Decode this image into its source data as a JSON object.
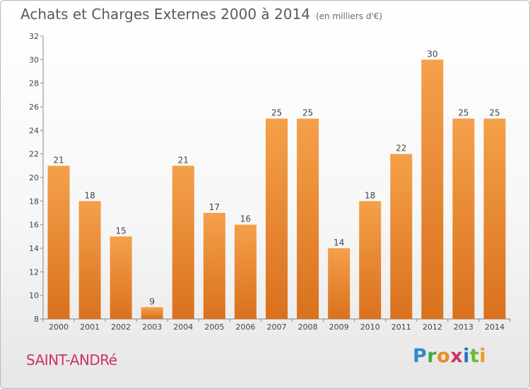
{
  "title": "Achats et Charges Externes 2000 à 2014",
  "subtitle": "(en milliers d'€)",
  "commune": "SAINT-ANDRé",
  "logo": {
    "letters": [
      "P",
      "r",
      "o",
      "x",
      "i",
      "t",
      "i"
    ]
  },
  "colors": {
    "bar_light": "#f5a04a",
    "bar_dark": "#d9711d",
    "title": "#5a5a5a",
    "commune": "#cc3366"
  },
  "chart_data": {
    "type": "bar",
    "title": "Achats et Charges Externes 2000 à 2014",
    "subtitle": "(en milliers d'€)",
    "xlabel": "",
    "ylabel": "",
    "categories": [
      "2000",
      "2001",
      "2002",
      "2003",
      "2004",
      "2005",
      "2006",
      "2007",
      "2008",
      "2009",
      "2010",
      "2011",
      "2012",
      "2013",
      "2014"
    ],
    "values": [
      21,
      18,
      15,
      9,
      21,
      17,
      16,
      25,
      25,
      14,
      18,
      22,
      30,
      25,
      25
    ],
    "ylim": [
      8,
      32
    ],
    "yticks": [
      8,
      10,
      12,
      14,
      16,
      18,
      20,
      22,
      24,
      26,
      28,
      30,
      32
    ],
    "grid": false,
    "legend": "none"
  }
}
